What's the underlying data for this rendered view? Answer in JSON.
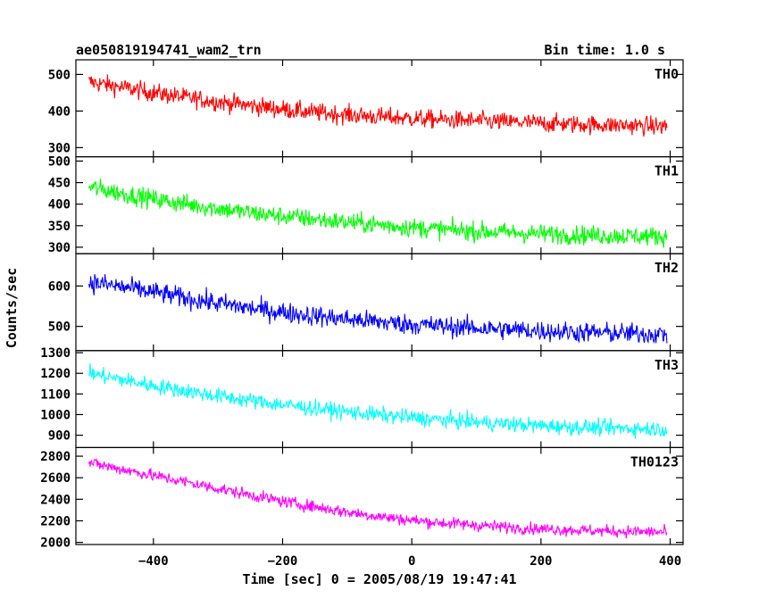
{
  "header": {
    "title": "ae050819194741_wam2_trn",
    "bin_time": "Bin time: 1.0 s"
  },
  "axes": {
    "ylabel": "Counts/sec",
    "xlabel": "Time [sec] 0 = 2005/08/19 19:47:41",
    "x_ticks": [
      "−400",
      "−200",
      "0",
      "200",
      "400"
    ]
  },
  "chart_data": {
    "type": "line",
    "xlabel": "Time [sec] 0 = 2005/08/19 19:47:41",
    "ylabel": "Counts/sec",
    "xlim": [
      -520,
      420
    ],
    "grid": false,
    "series": [
      {
        "name": "TH0",
        "color": "#ff0000",
        "ylim": [
          275,
          540
        ],
        "yticks": [
          300,
          400,
          500
        ],
        "x": [
          -500,
          -450,
          -400,
          -350,
          -300,
          -250,
          -200,
          -150,
          -100,
          -50,
          0,
          50,
          100,
          150,
          200,
          250,
          300,
          350,
          395
        ],
        "values": [
          480,
          465,
          450,
          437,
          425,
          415,
          405,
          396,
          390,
          384,
          380,
          376,
          373,
          370,
          367,
          364,
          362,
          360,
          358
        ],
        "noise": 25
      },
      {
        "name": "TH1",
        "color": "#00ff00",
        "ylim": [
          285,
          510
        ],
        "yticks": [
          300,
          350,
          400,
          450,
          500
        ],
        "x": [
          -500,
          -450,
          -400,
          -350,
          -300,
          -250,
          -200,
          -150,
          -100,
          -50,
          0,
          50,
          100,
          150,
          200,
          250,
          300,
          350,
          395
        ],
        "values": [
          440,
          425,
          412,
          400,
          390,
          380,
          372,
          365,
          358,
          352,
          346,
          341,
          337,
          334,
          331,
          329,
          327,
          326,
          325
        ],
        "noise": 22
      },
      {
        "name": "TH2",
        "color": "#0000ff",
        "ylim": [
          440,
          680
        ],
        "yticks": [
          500,
          600
        ],
        "x": [
          -500,
          -450,
          -400,
          -350,
          -300,
          -250,
          -200,
          -150,
          -100,
          -50,
          0,
          50,
          100,
          150,
          200,
          250,
          300,
          350,
          395
        ],
        "values": [
          610,
          598,
          585,
          570,
          557,
          545,
          535,
          526,
          518,
          511,
          505,
          500,
          496,
          492,
          489,
          486,
          484,
          482,
          481
        ],
        "noise": 25
      },
      {
        "name": "TH3",
        "color": "#00ffff",
        "ylim": [
          840,
          1310
        ],
        "yticks": [
          900,
          1000,
          1100,
          1200,
          1300
        ],
        "x": [
          -500,
          -450,
          -400,
          -350,
          -300,
          -250,
          -200,
          -150,
          -100,
          -50,
          0,
          50,
          100,
          150,
          200,
          250,
          300,
          350,
          395
        ],
        "values": [
          1200,
          1170,
          1140,
          1115,
          1090,
          1068,
          1048,
          1030,
          1013,
          998,
          985,
          974,
          963,
          954,
          946,
          940,
          935,
          932,
          930
        ],
        "noise": 38
      },
      {
        "name": "TH0123",
        "color": "#ff00ff",
        "ylim": [
          1980,
          2880
        ],
        "yticks": [
          2000,
          2200,
          2400,
          2600,
          2800
        ],
        "x": [
          -500,
          -450,
          -400,
          -350,
          -300,
          -250,
          -200,
          -150,
          -100,
          -50,
          0,
          50,
          100,
          150,
          200,
          250,
          300,
          350,
          395
        ],
        "values": [
          2740,
          2680,
          2620,
          2560,
          2500,
          2440,
          2380,
          2330,
          2280,
          2240,
          2205,
          2180,
          2160,
          2140,
          2125,
          2115,
          2105,
          2100,
          2095
        ],
        "noise": 55
      }
    ]
  }
}
